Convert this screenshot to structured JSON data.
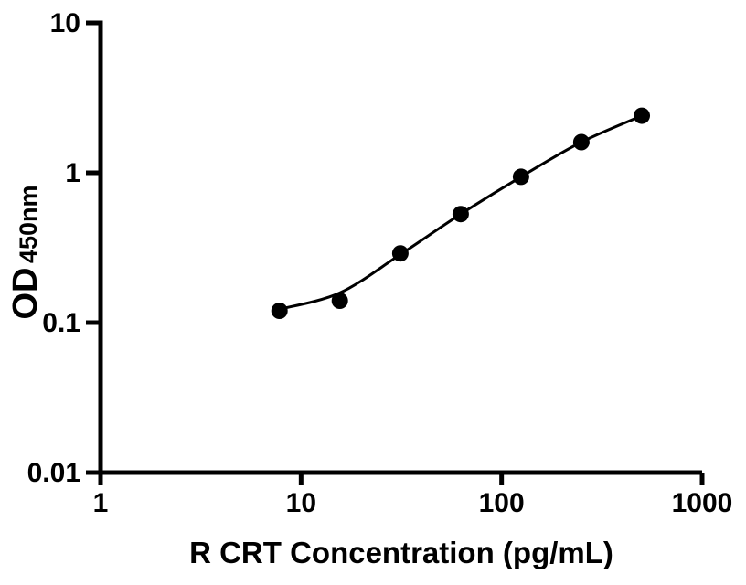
{
  "figure": {
    "background_color": "#ffffff",
    "ink_color": "#000000"
  },
  "chart_data": {
    "type": "scatter",
    "title": "",
    "xlabel": "R CRT Concentration (pg/mL)",
    "ylabel_main": "OD",
    "ylabel_sub": "450nm",
    "x_scale": "log",
    "y_scale": "log",
    "xlim": [
      1,
      1000
    ],
    "ylim": [
      0.01,
      10
    ],
    "x_ticks": [
      1,
      10,
      100,
      1000
    ],
    "x_tick_labels": [
      "1",
      "10",
      "100",
      "1000"
    ],
    "y_ticks": [
      10,
      1,
      0.1,
      0.01
    ],
    "y_tick_labels": [
      "10",
      "1",
      "0.1",
      "0.01"
    ],
    "grid": false,
    "legend": null,
    "marker": "filled-circle",
    "series": [
      {
        "name": "standard-points",
        "type": "scatter",
        "color": "#000000",
        "x": [
          7.8,
          15.6,
          31.25,
          62.5,
          125,
          250,
          500
        ],
        "y": [
          0.12,
          0.14,
          0.29,
          0.53,
          0.94,
          1.6,
          2.4
        ]
      },
      {
        "name": "fit-curve",
        "type": "line",
        "color": "#000000",
        "x": [
          7.8,
          15.6,
          31.25,
          62.5,
          125,
          250,
          500
        ],
        "y": [
          0.123,
          0.158,
          0.285,
          0.53,
          0.94,
          1.6,
          2.4
        ]
      }
    ]
  }
}
